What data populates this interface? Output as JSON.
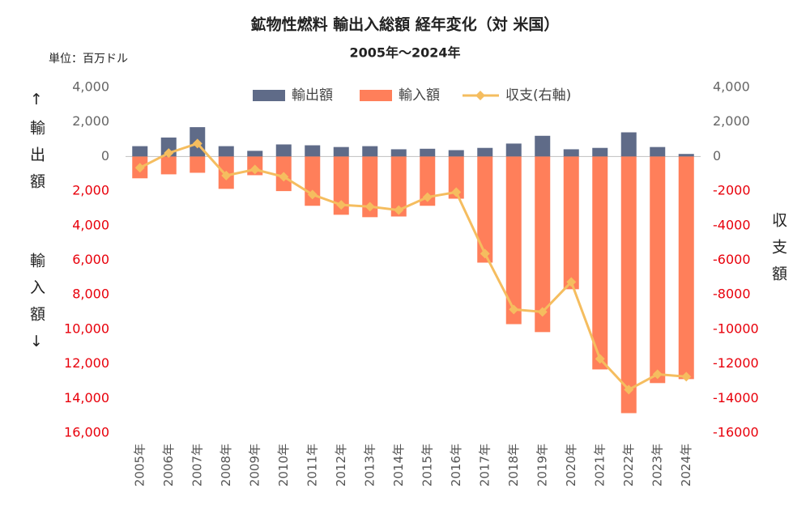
{
  "chart_data": {
    "type": "bar",
    "title": "鉱物性燃料 輸出入総額 経年変化（対 米国）",
    "subtitle": "2005年～2024年",
    "unit_note": "単位：百万ドル",
    "ylabel_top": "↑輸出額",
    "ylabel_bottom": "輸入額↓",
    "y2label": "収支額",
    "categories": [
      "2005年",
      "2006年",
      "2007年",
      "2008年",
      "2009年",
      "2010年",
      "2011年",
      "2012年",
      "2013年",
      "2014年",
      "2015年",
      "2016年",
      "2017年",
      "2018年",
      "2019年",
      "2020年",
      "2021年",
      "2022年",
      "2023年",
      "2024年"
    ],
    "series": [
      {
        "name": "輸出額",
        "color": "#5f6b88",
        "values": [
          600,
          1100,
          1700,
          600,
          330,
          700,
          650,
          550,
          600,
          420,
          450,
          370,
          500,
          750,
          1200,
          420,
          500,
          1400,
          550,
          150
        ]
      },
      {
        "name": "輸入額",
        "color": "#ff7f5a",
        "values": [
          -1260,
          -1030,
          -940,
          -1870,
          -1080,
          -2000,
          -2850,
          -3370,
          -3510,
          -3470,
          -2850,
          -2440,
          -6140,
          -9700,
          -10160,
          -7680,
          -12320,
          -14850,
          -13110,
          -12880
        ]
      },
      {
        "name": "収支(右軸)",
        "color": "#f5bd5f",
        "type": "line",
        "axis": "y2",
        "values": [
          -650,
          200,
          750,
          -1100,
          -750,
          -1170,
          -2200,
          -2800,
          -2900,
          -3100,
          -2350,
          -2060,
          -5620,
          -8850,
          -8990,
          -7260,
          -11710,
          -13490,
          -12600,
          -12740
        ]
      }
    ],
    "ylim": [
      4000,
      -16000
    ],
    "yticks": [
      {
        "value": 4000,
        "label": "4,000"
      },
      {
        "value": 2000,
        "label": "2,000"
      },
      0,
      {
        "value": -2000,
        "label": "2,000"
      },
      {
        "value": -4000,
        "label": "4,000"
      },
      {
        "value": -6000,
        "label": "6,000"
      },
      {
        "value": -8000,
        "label": "8,000"
      },
      {
        "value": -10000,
        "label": "10,000"
      },
      {
        "value": -12000,
        "label": "12,000"
      },
      {
        "value": -14000,
        "label": "14,000"
      },
      {
        "value": -16000,
        "label": "16,000"
      }
    ],
    "y2lim": [
      4000,
      -16000
    ],
    "y2ticks": [
      {
        "value": 4000,
        "label": "4,000"
      },
      {
        "value": 2000,
        "label": "2,000"
      },
      0,
      -2000,
      -4000,
      -6000,
      -8000,
      -10000,
      -12000,
      -14000,
      -16000
    ],
    "y2tick_labels_printed": null,
    "legend": "top"
  }
}
